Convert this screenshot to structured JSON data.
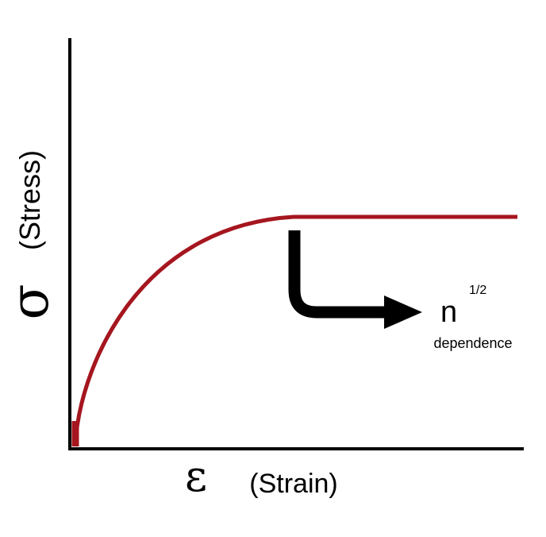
{
  "axes": {
    "y_symbol": "σ",
    "y_label": "(Stress)",
    "x_symbol": "ε",
    "x_label": "(Strain)"
  },
  "annotation": {
    "symbol": "n",
    "exponent": "1/2",
    "text": "dependence"
  }
}
